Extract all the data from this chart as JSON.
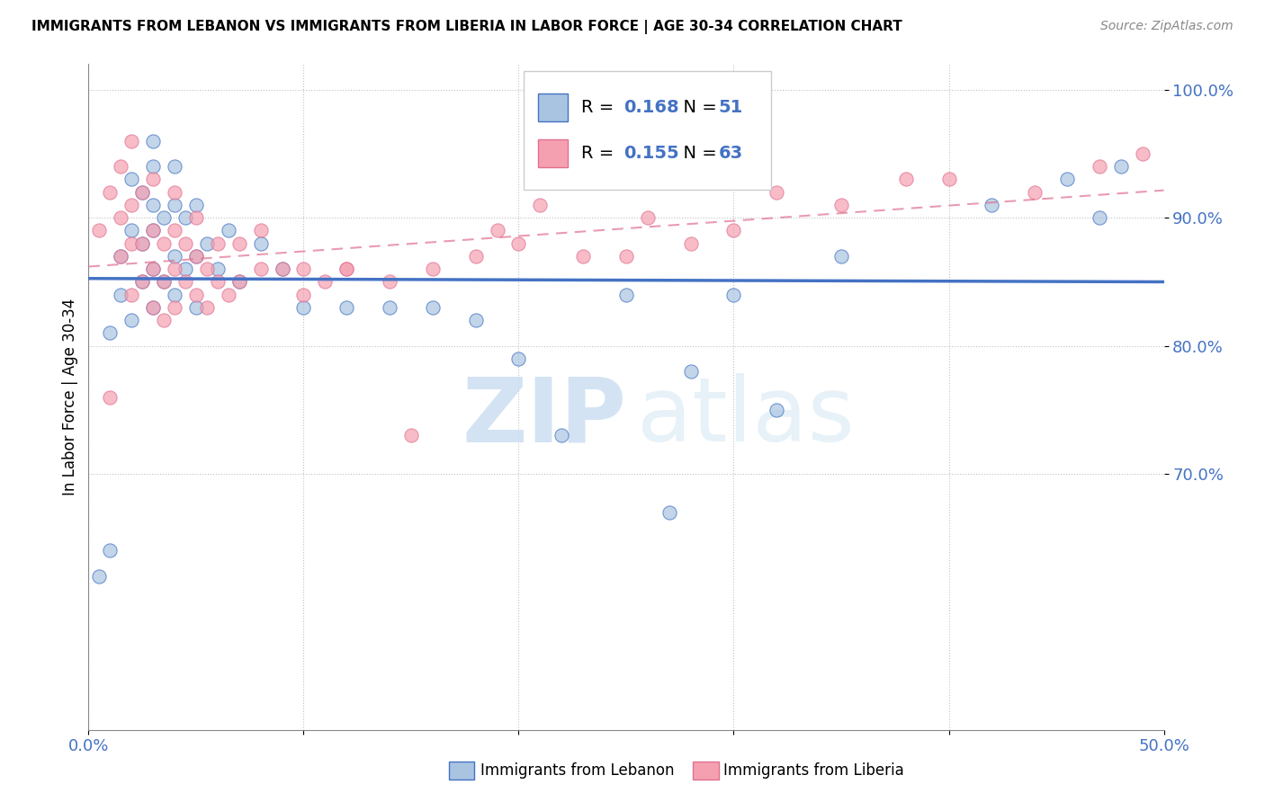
{
  "title": "IMMIGRANTS FROM LEBANON VS IMMIGRANTS FROM LIBERIA IN LABOR FORCE | AGE 30-34 CORRELATION CHART",
  "source": "Source: ZipAtlas.com",
  "ylabel": "In Labor Force | Age 30-34",
  "xlim": [
    0.0,
    0.5
  ],
  "ylim": [
    0.5,
    1.02
  ],
  "lebanon_color": "#a8c4e0",
  "liberia_color": "#f4a0b0",
  "lebanon_line_color": "#4472c4",
  "liberia_line_color": "#e07090",
  "legend_R_lebanon": "0.168",
  "legend_N_lebanon": "51",
  "legend_R_liberia": "0.155",
  "legend_N_liberia": "63",
  "watermark_zip": "ZIP",
  "watermark_atlas": "atlas",
  "lebanon_x": [
    0.005,
    0.01,
    0.01,
    0.015,
    0.015,
    0.02,
    0.02,
    0.02,
    0.025,
    0.025,
    0.025,
    0.03,
    0.03,
    0.03,
    0.03,
    0.03,
    0.03,
    0.035,
    0.035,
    0.04,
    0.04,
    0.04,
    0.04,
    0.045,
    0.045,
    0.05,
    0.05,
    0.05,
    0.055,
    0.06,
    0.065,
    0.07,
    0.08,
    0.09,
    0.1,
    0.14,
    0.16,
    0.2,
    0.25,
    0.28,
    0.3,
    0.32,
    0.35,
    0.42,
    0.455,
    0.47,
    0.48,
    0.12,
    0.18,
    0.22,
    0.27
  ],
  "lebanon_y": [
    0.62,
    0.64,
    0.81,
    0.84,
    0.87,
    0.82,
    0.89,
    0.93,
    0.85,
    0.88,
    0.92,
    0.83,
    0.86,
    0.89,
    0.91,
    0.94,
    0.96,
    0.85,
    0.9,
    0.84,
    0.87,
    0.91,
    0.94,
    0.86,
    0.9,
    0.83,
    0.87,
    0.91,
    0.88,
    0.86,
    0.89,
    0.85,
    0.88,
    0.86,
    0.83,
    0.83,
    0.83,
    0.79,
    0.84,
    0.78,
    0.84,
    0.75,
    0.87,
    0.91,
    0.93,
    0.9,
    0.94,
    0.83,
    0.82,
    0.73,
    0.67
  ],
  "liberia_x": [
    0.005,
    0.01,
    0.01,
    0.015,
    0.015,
    0.015,
    0.02,
    0.02,
    0.02,
    0.02,
    0.025,
    0.025,
    0.025,
    0.03,
    0.03,
    0.03,
    0.03,
    0.035,
    0.035,
    0.035,
    0.04,
    0.04,
    0.04,
    0.04,
    0.045,
    0.045,
    0.05,
    0.05,
    0.05,
    0.055,
    0.055,
    0.06,
    0.06,
    0.065,
    0.07,
    0.07,
    0.08,
    0.08,
    0.09,
    0.1,
    0.11,
    0.12,
    0.14,
    0.15,
    0.18,
    0.2,
    0.23,
    0.25,
    0.28,
    0.3,
    0.1,
    0.12,
    0.16,
    0.19,
    0.21,
    0.26,
    0.32,
    0.35,
    0.38,
    0.4,
    0.44,
    0.47,
    0.49
  ],
  "liberia_y": [
    0.89,
    0.92,
    0.76,
    0.87,
    0.9,
    0.94,
    0.84,
    0.88,
    0.91,
    0.96,
    0.85,
    0.88,
    0.92,
    0.83,
    0.86,
    0.89,
    0.93,
    0.82,
    0.85,
    0.88,
    0.83,
    0.86,
    0.89,
    0.92,
    0.85,
    0.88,
    0.84,
    0.87,
    0.9,
    0.83,
    0.86,
    0.85,
    0.88,
    0.84,
    0.85,
    0.88,
    0.86,
    0.89,
    0.86,
    0.86,
    0.85,
    0.86,
    0.85,
    0.73,
    0.87,
    0.88,
    0.87,
    0.87,
    0.88,
    0.89,
    0.84,
    0.86,
    0.86,
    0.89,
    0.91,
    0.9,
    0.92,
    0.91,
    0.93,
    0.93,
    0.92,
    0.94,
    0.95
  ]
}
